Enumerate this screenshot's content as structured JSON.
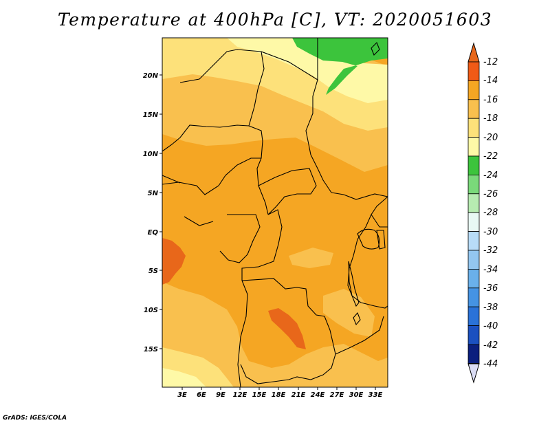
{
  "title": "Temperature at 400hPa [C], VT: 2020051603",
  "credit": "GrADS: IGES/COLA",
  "map": {
    "lon_range": [
      0,
      34
    ],
    "lat_range": [
      -20,
      24
    ],
    "lat_ticks": [
      {
        "lat": 20,
        "label": "20N"
      },
      {
        "lat": 15,
        "label": "15N"
      },
      {
        "lat": 10,
        "label": "10N"
      },
      {
        "lat": 5,
        "label": "5N"
      },
      {
        "lat": 0,
        "label": "EQ"
      },
      {
        "lat": -5,
        "label": "5S"
      },
      {
        "lat": -10,
        "label": "10S"
      },
      {
        "lat": -15,
        "label": "15S"
      }
    ],
    "lon_ticks": [
      {
        "lon": 3,
        "label": "3E"
      },
      {
        "lon": 6,
        "label": "6E"
      },
      {
        "lon": 9,
        "label": "9E"
      },
      {
        "lon": 12,
        "label": "12E"
      },
      {
        "lon": 15,
        "label": "15E"
      },
      {
        "lon": 18,
        "label": "18E"
      },
      {
        "lon": 21,
        "label": "21E"
      },
      {
        "lon": 24,
        "label": "24E"
      },
      {
        "lon": 27,
        "label": "27E"
      },
      {
        "lon": 30,
        "label": "30E"
      },
      {
        "lon": 33,
        "label": "33E"
      }
    ],
    "base_color": "#f5a623",
    "colors": {
      "t_22_20": "#fef9a7",
      "t_20_18": "#fde17a",
      "t_18_16": "#f9c04e",
      "t_16_14": "#f5a623",
      "t_14_12": "#e8671a",
      "t_24_22": "#3cc43c",
      "t_26_24": "#7ad97a",
      "border": "#000000"
    }
  },
  "colorbar": {
    "labels": [
      "-12",
      "-14",
      "-16",
      "-18",
      "-20",
      "-22",
      "-24",
      "-26",
      "-28",
      "-30",
      "-32",
      "-34",
      "-36",
      "-38",
      "-40",
      "-42",
      "-44"
    ],
    "colors": [
      "#f05a16",
      "#f5a623",
      "#f9c04e",
      "#fde17a",
      "#fef9a7",
      "#3cc43c",
      "#7ad97a",
      "#b7ebb1",
      "#e8f8f4",
      "#b8dcf8",
      "#93c6f0",
      "#6ab0ea",
      "#4593e3",
      "#2a72d8",
      "#1b50c0",
      "#0b1f7e"
    ],
    "top_color": "#e8671a",
    "bottom_color": "#dadcf4"
  }
}
